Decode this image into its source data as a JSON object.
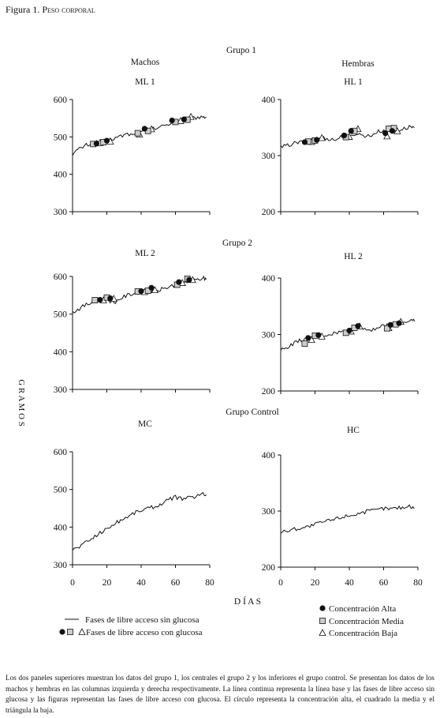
{
  "figure": {
    "label": "Figura 1.",
    "title": "Peso corporal",
    "caption": "Los dos paneles superiores muestran los datos del grupo 1, los centrales el grupo 2 y los inferiores el grupo control. Se presentan los datos de los machos y hembras en las columnas izquierda y derecha respectivamente. La línea continua representa la línea base y las fases de libre acceso sin glucosa y las figuras representan las fases de libre acceso con glucosa. El círculo representa la concentración alta, el cuadrado la media y el triángula la baja."
  },
  "headers": {
    "group1": "Grupo 1",
    "group2": "Grupo 2",
    "groupControl": "Grupo Control",
    "males": "Machos",
    "females": "Hembras"
  },
  "axes": {
    "ylabel": "G R A M O S",
    "xlabel": "D Í A S",
    "xticks": [
      "0",
      "20",
      "40",
      "60",
      "80"
    ]
  },
  "legend": {
    "line": "Fases de libre acceso sin glucosa",
    "symbols": "Fases de libre acceso con glucosa",
    "high": "Concentración Alta",
    "medium": "Concentración Media",
    "low": "Concentración Baja"
  },
  "chart_data": [
    {
      "type": "line",
      "title": "ML 1",
      "ylim": [
        300,
        600
      ],
      "yticks": [
        "600",
        "500",
        "400",
        "300"
      ],
      "xlim": [
        0,
        80
      ],
      "baseline": {
        "x": [
          0,
          4,
          8,
          12,
          16,
          20,
          24,
          28,
          32,
          36,
          40,
          44,
          48,
          52,
          56,
          60,
          64,
          68,
          72,
          76,
          78
        ],
        "y": [
          455,
          468,
          478,
          484,
          488,
          490,
          496,
          502,
          508,
          505,
          512,
          520,
          522,
          528,
          535,
          540,
          545,
          548,
          552,
          555,
          553
        ]
      },
      "glucose": {
        "high": [
          [
            14,
            482
          ],
          [
            20,
            490
          ],
          [
            42,
            522
          ],
          [
            58,
            544
          ],
          [
            65,
            547
          ]
        ],
        "medium": [
          [
            12,
            481
          ],
          [
            18,
            486
          ],
          [
            38,
            510
          ],
          [
            44,
            516
          ],
          [
            60,
            540
          ],
          [
            67,
            546
          ]
        ],
        "low": [
          [
            16,
            483
          ],
          [
            22,
            487
          ],
          [
            39,
            506
          ],
          [
            46,
            520
          ],
          [
            63,
            542
          ],
          [
            69,
            553
          ]
        ]
      }
    },
    {
      "type": "line",
      "title": "HL 1",
      "ylim": [
        200,
        400
      ],
      "yticks": [
        "400",
        "300",
        "200"
      ],
      "xlim": [
        0,
        80
      ],
      "baseline": {
        "x": [
          0,
          4,
          8,
          12,
          16,
          20,
          24,
          28,
          32,
          36,
          40,
          44,
          48,
          52,
          56,
          60,
          64,
          68,
          72,
          76,
          78
        ],
        "y": [
          315,
          318,
          322,
          324,
          326,
          330,
          332,
          330,
          328,
          335,
          332,
          340,
          336,
          335,
          342,
          345,
          343,
          345,
          348,
          352,
          350
        ]
      },
      "glucose": {
        "high": [
          [
            14,
            324
          ],
          [
            21,
            328
          ],
          [
            37,
            336
          ],
          [
            41,
            344
          ],
          [
            61,
            340
          ],
          [
            65,
            344
          ]
        ],
        "medium": [
          [
            16,
            325
          ],
          [
            20,
            327
          ],
          [
            38,
            333
          ],
          [
            43,
            344
          ],
          [
            63,
            348
          ],
          [
            66,
            349
          ]
        ],
        "low": [
          [
            18,
            324
          ],
          [
            24,
            331
          ],
          [
            40,
            333
          ],
          [
            45,
            347
          ],
          [
            62,
            334
          ],
          [
            68,
            343
          ]
        ]
      }
    },
    {
      "type": "line",
      "title": "ML 2",
      "ylim": [
        300,
        600
      ],
      "yticks": [
        "600",
        "500",
        "400",
        "300"
      ],
      "xlim": [
        0,
        80
      ],
      "baseline": {
        "x": [
          0,
          4,
          8,
          12,
          16,
          20,
          24,
          28,
          32,
          36,
          40,
          44,
          48,
          52,
          56,
          60,
          64,
          68,
          72,
          76,
          78
        ],
        "y": [
          505,
          515,
          525,
          532,
          538,
          540,
          530,
          542,
          550,
          556,
          560,
          564,
          560,
          566,
          572,
          578,
          582,
          586,
          590,
          596,
          592
        ]
      },
      "glucose": {
        "high": [
          [
            16,
            538
          ],
          [
            22,
            542
          ],
          [
            40,
            561
          ],
          [
            46,
            570
          ],
          [
            62,
            585
          ],
          [
            68,
            591
          ]
        ],
        "medium": [
          [
            13,
            537
          ],
          [
            20,
            544
          ],
          [
            38,
            560
          ],
          [
            44,
            562
          ],
          [
            61,
            578
          ],
          [
            67,
            594
          ]
        ],
        "low": [
          [
            18,
            536
          ],
          [
            24,
            540
          ],
          [
            42,
            558
          ],
          [
            48,
            563
          ],
          [
            64,
            582
          ],
          [
            70,
            590
          ]
        ]
      }
    },
    {
      "type": "line",
      "title": "HL 2",
      "ylim": [
        200,
        400
      ],
      "yticks": [
        "400",
        "300",
        "200"
      ],
      "xlim": [
        0,
        80
      ],
      "baseline": {
        "x": [
          0,
          4,
          8,
          12,
          16,
          20,
          24,
          28,
          32,
          36,
          40,
          44,
          48,
          52,
          56,
          60,
          64,
          68,
          72,
          76,
          78
        ],
        "y": [
          272,
          278,
          285,
          290,
          292,
          296,
          298,
          300,
          303,
          305,
          307,
          310,
          312,
          308,
          312,
          315,
          318,
          320,
          322,
          325,
          323
        ]
      },
      "glucose": {
        "high": [
          [
            16,
            294
          ],
          [
            22,
            299
          ],
          [
            40,
            307
          ],
          [
            45,
            315
          ],
          [
            64,
            317
          ],
          [
            69,
            320
          ]
        ],
        "medium": [
          [
            14,
            284
          ],
          [
            20,
            298
          ],
          [
            38,
            303
          ],
          [
            43,
            312
          ],
          [
            62,
            311
          ],
          [
            67,
            318
          ]
        ],
        "low": [
          [
            18,
            290
          ],
          [
            24,
            296
          ],
          [
            41,
            305
          ],
          [
            46,
            314
          ],
          [
            63,
            311
          ],
          [
            70,
            322
          ]
        ]
      }
    },
    {
      "type": "line",
      "title": "MC",
      "ylim": [
        300,
        600
      ],
      "yticks": [
        "600",
        "500",
        "400",
        "300"
      ],
      "xlim": [
        0,
        80
      ],
      "baseline": {
        "x": [
          0,
          4,
          8,
          12,
          16,
          20,
          24,
          28,
          32,
          36,
          40,
          44,
          48,
          52,
          56,
          60,
          64,
          68,
          72,
          76,
          78
        ],
        "y": [
          340,
          348,
          360,
          372,
          385,
          395,
          408,
          418,
          428,
          438,
          445,
          450,
          455,
          462,
          472,
          480,
          475,
          478,
          482,
          488,
          486
        ]
      },
      "glucose": {
        "high": [],
        "medium": [],
        "low": []
      }
    },
    {
      "type": "line",
      "title": "HC",
      "ylim": [
        200,
        400
      ],
      "yticks": [
        "400",
        "300",
        "200"
      ],
      "xlim": [
        0,
        80
      ],
      "baseline": {
        "x": [
          0,
          4,
          8,
          12,
          16,
          20,
          24,
          28,
          32,
          36,
          40,
          44,
          48,
          52,
          56,
          60,
          64,
          68,
          72,
          76,
          78
        ],
        "y": [
          262,
          265,
          268,
          270,
          272,
          276,
          280,
          283,
          286,
          290,
          292,
          295,
          298,
          300,
          302,
          305,
          304,
          306,
          307,
          308,
          305
        ]
      },
      "glucose": {
        "high": [],
        "medium": [],
        "low": []
      }
    }
  ]
}
